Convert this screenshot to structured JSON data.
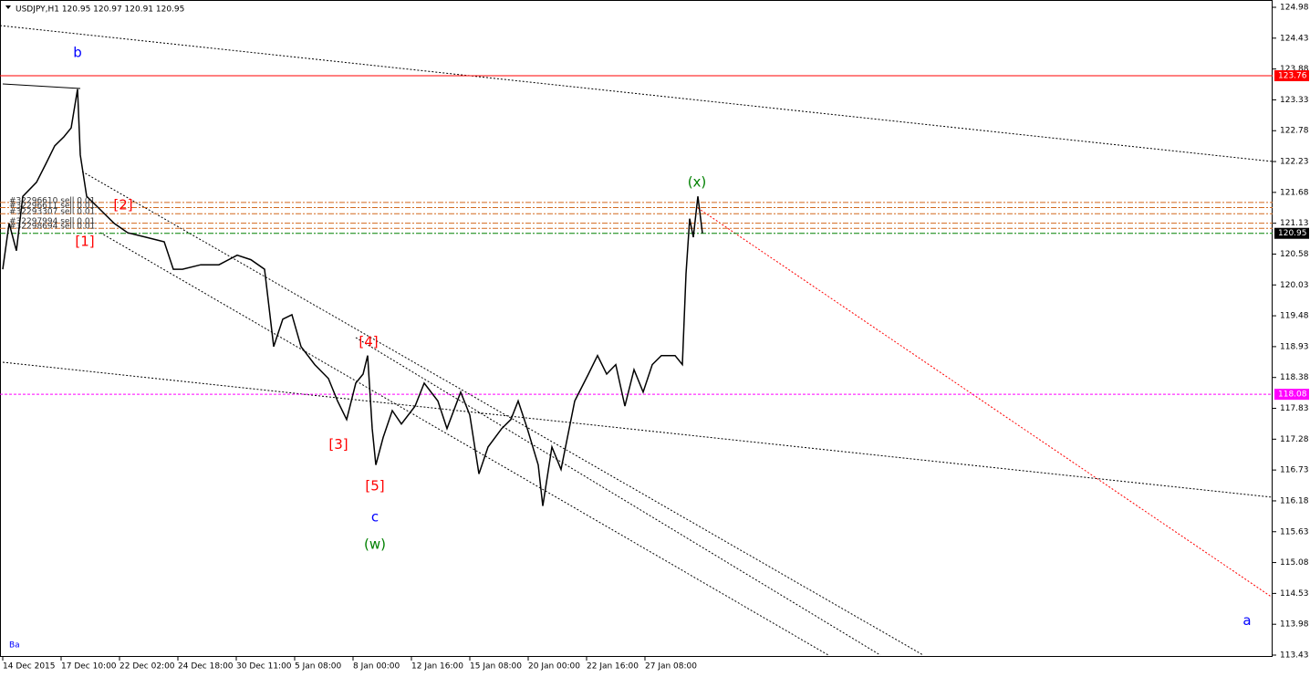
{
  "chart_data": {
    "type": "line",
    "title": "USDJPY,H1  120.95 120.97 120.91 120.95",
    "color": "#000000",
    "x": [
      0,
      7,
      15,
      22,
      37,
      47,
      57,
      67,
      75,
      82,
      85,
      92,
      107,
      122,
      137,
      157,
      177,
      187,
      197,
      217,
      237,
      257,
      272,
      287,
      297,
      307,
      317,
      327,
      342,
      357,
      367,
      377,
      387,
      395,
      400,
      405,
      409,
      417,
      427,
      437,
      452,
      462,
      477,
      487,
      502,
      512,
      522,
      532,
      547,
      557,
      565,
      575,
      587,
      592,
      602,
      612,
      627,
      642,
      652,
      662,
      672,
      682,
      692,
      702,
      712,
      722,
      737,
      745,
      749,
      753,
      757,
      762,
      767
    ],
    "series": [
      {
        "color": "#000000",
        "values": [
          120.31,
          121.13,
          120.64,
          121.61,
          121.86,
          122.18,
          122.51,
          122.67,
          122.83,
          123.52,
          122.35,
          121.61,
          121.37,
          121.13,
          120.96,
          120.88,
          120.8,
          120.31,
          120.31,
          120.39,
          120.39,
          120.56,
          120.48,
          120.31,
          118.93,
          119.42,
          119.5,
          118.93,
          118.61,
          118.36,
          117.96,
          117.63,
          118.28,
          118.44,
          118.77,
          117.47,
          116.82,
          117.31,
          117.79,
          117.55,
          117.87,
          118.28,
          117.96,
          117.47,
          118.12,
          117.71,
          116.66,
          117.14,
          117.47,
          117.63,
          117.96,
          117.47,
          116.82,
          116.09,
          117.14,
          116.74,
          117.96,
          118.44,
          118.77,
          118.44,
          118.61,
          117.87,
          118.52,
          118.12,
          118.61,
          118.77,
          118.77,
          118.61,
          120.23,
          121.21,
          120.88,
          121.61,
          120.95
        ]
      }
    ],
    "xlim": [
      0,
      1392
    ],
    "ylim": [
      113.43,
      124.98
    ],
    "xticks": [
      {
        "value": 0,
        "label": "14 Dec 2015"
      },
      {
        "value": 64,
        "label": "17 Dec 10:00"
      },
      {
        "value": 128,
        "label": "22 Dec 02:00"
      },
      {
        "value": 192,
        "label": "24 Dec 18:00"
      },
      {
        "value": 256,
        "label": "30 Dec 11:00"
      },
      {
        "value": 320,
        "label": "5 Jan 08:00"
      },
      {
        "value": 384,
        "label": "8 Jan 00:00"
      },
      {
        "value": 448,
        "label": "12 Jan 16:00"
      },
      {
        "value": 512,
        "label": "15 Jan 08:00"
      },
      {
        "value": 576,
        "label": "20 Jan 00:00"
      },
      {
        "value": 640,
        "label": "22 Jan 16:00"
      },
      {
        "value": 704,
        "label": "27 Jan 08:00"
      }
    ],
    "yticks": [
      124.98,
      124.43,
      123.88,
      123.33,
      122.78,
      122.23,
      121.68,
      121.13,
      120.58,
      120.03,
      119.48,
      118.93,
      118.38,
      117.83,
      117.28,
      116.73,
      116.18,
      115.63,
      115.08,
      114.53,
      113.98,
      113.43
    ],
    "levels": [
      {
        "value": 123.76,
        "color": "#ff0000",
        "style": "solid"
      },
      {
        "value": 118.08,
        "color": "#ff00ff",
        "style": "dashed"
      },
      {
        "value": 120.95,
        "color": "#008000",
        "style": "dashdot"
      }
    ],
    "orders": [
      {
        "value": 121.5,
        "label": "#32296610 sell 0.01"
      },
      {
        "value": 121.41,
        "label": "#32296611 sell 0.01"
      },
      {
        "value": 121.3,
        "label": "#32293307 sell 0.01"
      },
      {
        "value": 121.13,
        "label": "#32297994 sell 0.01"
      },
      {
        "value": 121.04,
        "label": "#32298694 sell 0.01"
      }
    ],
    "orders_color": "#d2691e",
    "annotations": [
      {
        "text": "b",
        "x": 82,
        "y": 124.17,
        "color": "#0000ff"
      },
      {
        "text": "[1]",
        "x": 90,
        "y": 120.8,
        "color": "#ff0000"
      },
      {
        "text": "[2]",
        "x": 132,
        "y": 121.45,
        "color": "#ff0000"
      },
      {
        "text": "[3]",
        "x": 368,
        "y": 117.18,
        "color": "#ff0000"
      },
      {
        "text": "[4]",
        "x": 401,
        "y": 119.01,
        "color": "#ff0000"
      },
      {
        "text": "[5]",
        "x": 408,
        "y": 116.44,
        "color": "#ff0000"
      },
      {
        "text": "c",
        "x": 408,
        "y": 115.89,
        "color": "#0000ff"
      },
      {
        "text": "(w)",
        "x": 408,
        "y": 115.4,
        "color": "#008000"
      },
      {
        "text": "(x)",
        "x": 761,
        "y": 121.86,
        "color": "#008000"
      },
      {
        "text": "a",
        "x": 1364,
        "y": 114.04,
        "color": "#0000ff"
      }
    ],
    "footer_text": "Ba"
  }
}
